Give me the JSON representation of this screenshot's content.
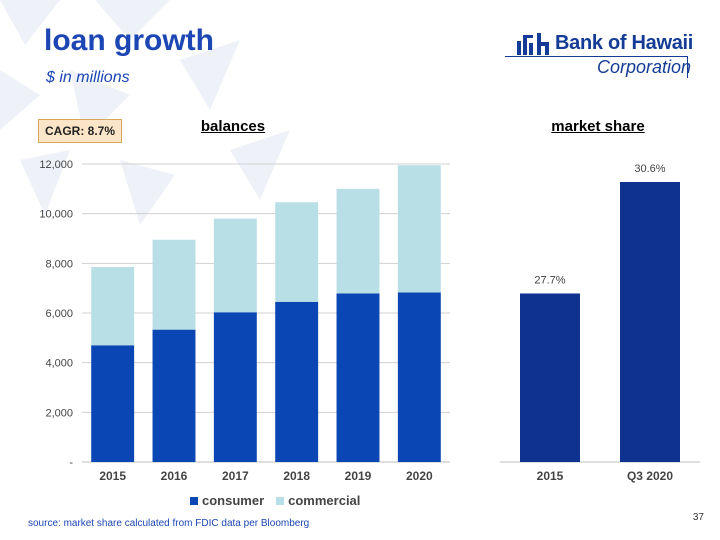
{
  "slide": {
    "title": "loan growth",
    "subtitle": "$ in millions",
    "footnote": "source: market share calculated from FDIC data per Bloomberg",
    "page_number": "37"
  },
  "logo": {
    "name": "Bank of Hawaii",
    "corporation": "Corporation",
    "color": "#143c96"
  },
  "badge": {
    "label": "CAGR: 8.7%"
  },
  "colors": {
    "consumer": "#0a46b4",
    "commercial": "#b9dfe6",
    "market_share": "#0f3291",
    "gridline": "#d0d0d0",
    "deco": "#eef2f8"
  },
  "chart_data": [
    {
      "type": "bar",
      "stacked": true,
      "title": "balances",
      "categories": [
        "2015",
        "2016",
        "2017",
        "2018",
        "2019",
        "2020"
      ],
      "series": [
        {
          "name": "consumer",
          "values": [
            4700,
            5330,
            6030,
            6450,
            6790,
            6830
          ]
        },
        {
          "name": "commercial",
          "values": [
            3150,
            3620,
            3770,
            4010,
            4210,
            5120
          ]
        }
      ],
      "ylim": [
        0,
        12000
      ],
      "yticks": [
        0,
        2000,
        4000,
        6000,
        8000,
        10000,
        12000
      ],
      "ytick_labels": [
        "-",
        "2,000",
        "4,000",
        "6,000",
        "8,000",
        "10,000",
        "12,000"
      ],
      "grid": true,
      "legend": "bottom"
    },
    {
      "type": "bar",
      "title": "market share",
      "categories": [
        "2015",
        "Q3 2020"
      ],
      "values": [
        27.7,
        30.6
      ],
      "data_labels": [
        "27.7%",
        "30.6%"
      ],
      "grid": false
    }
  ]
}
